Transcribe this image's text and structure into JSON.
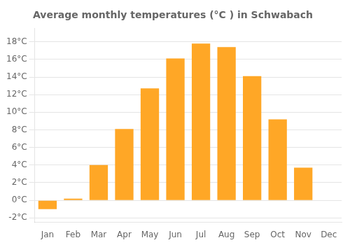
{
  "chart_data": {
    "type": "bar",
    "title": "Average monthly temperatures (°C ) in Schwabach",
    "categories": [
      "Jan",
      "Feb",
      "Mar",
      "Apr",
      "May",
      "Jun",
      "Jul",
      "Aug",
      "Sep",
      "Oct",
      "Nov",
      "Dec"
    ],
    "values": [
      -1.0,
      0.2,
      4.0,
      8.1,
      12.7,
      16.1,
      17.8,
      17.4,
      14.1,
      9.2,
      3.7,
      0.0
    ],
    "color": "#FFA726",
    "ylim": [
      -2.5,
      19.5
    ],
    "yticks": [
      {
        "value": -2,
        "label": "-2°C"
      },
      {
        "value": 0,
        "label": "0°C"
      },
      {
        "value": 2,
        "label": "2°C"
      },
      {
        "value": 4,
        "label": "4°C"
      },
      {
        "value": 6,
        "label": "6°C"
      },
      {
        "value": 8,
        "label": "8°C"
      },
      {
        "value": 10,
        "label": "10°C"
      },
      {
        "value": 12,
        "label": "12°C"
      },
      {
        "value": 14,
        "label": "14°C"
      },
      {
        "value": 16,
        "label": "16°C"
      },
      {
        "value": 18,
        "label": "18°C"
      }
    ],
    "grid": true
  }
}
